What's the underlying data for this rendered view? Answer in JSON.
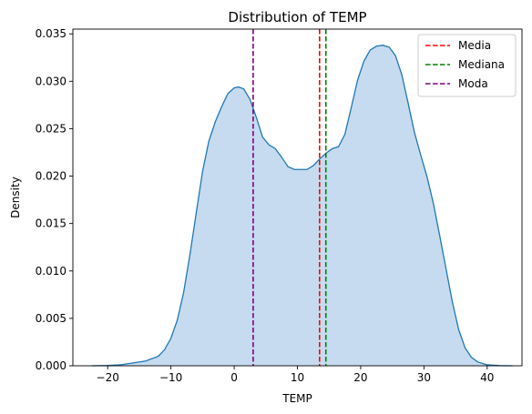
{
  "chart_data": {
    "type": "area",
    "title": "Distribution of TEMP",
    "xlabel": "TEMP",
    "ylabel": "Density",
    "xlim": [
      -25.5,
      45.5
    ],
    "ylim": [
      0,
      0.0355
    ],
    "xticks": [
      -20,
      -10,
      0,
      10,
      20,
      30,
      40
    ],
    "yticks": [
      0.0,
      0.005,
      0.01,
      0.015,
      0.02,
      0.025,
      0.03
    ],
    "ytick_labels": [
      "0.000",
      "0.005",
      "0.010",
      "0.015",
      "0.020",
      "0.025",
      "0.030",
      "0.035"
    ],
    "ytick_values": [
      0.0,
      0.005,
      0.01,
      0.015,
      0.02,
      0.025,
      0.03,
      0.035
    ],
    "grid": false,
    "legend_position": "top-right",
    "series": [
      {
        "kind": "kde",
        "color": "#1f77b4",
        "fill": "#c6dbef",
        "x": [
          -22.5,
          -20,
          -18,
          -16,
          -14,
          -12,
          -11,
          -10,
          -9,
          -8,
          -7,
          -6,
          -5,
          -4,
          -3,
          -2,
          -1,
          0,
          0.7,
          1.5,
          2.5,
          3.5,
          4.5,
          5.5,
          6.5,
          7.5,
          8.5,
          9.5,
          10.5,
          11.5,
          12.5,
          13.5,
          14.5,
          15.5,
          16.5,
          17.5,
          18.5,
          19.5,
          20.5,
          21.5,
          22.5,
          23.5,
          24.5,
          25.5,
          26.5,
          27.5,
          28.5,
          29.5,
          30.5,
          31.5,
          32.5,
          33.5,
          34.5,
          35.5,
          36.5,
          37.5,
          38.5,
          40,
          42,
          44
        ],
        "y": [
          0.0,
          3e-05,
          0.0001,
          0.0003,
          0.0005,
          0.001,
          0.0017,
          0.0029,
          0.0048,
          0.0077,
          0.0117,
          0.0161,
          0.0205,
          0.0237,
          0.0257,
          0.0273,
          0.0287,
          0.0293,
          0.0294,
          0.0292,
          0.0281,
          0.0262,
          0.0241,
          0.0233,
          0.0229,
          0.022,
          0.021,
          0.0207,
          0.0207,
          0.0207,
          0.0211,
          0.0218,
          0.0224,
          0.0229,
          0.0231,
          0.0244,
          0.0272,
          0.0301,
          0.0321,
          0.0333,
          0.0337,
          0.0338,
          0.0336,
          0.0327,
          0.0307,
          0.0277,
          0.0246,
          0.0222,
          0.0199,
          0.0171,
          0.0137,
          0.0102,
          0.0067,
          0.0038,
          0.0019,
          0.0009,
          0.0004,
          0.0001,
          2e-05,
          0.0
        ]
      }
    ],
    "vlines": [
      {
        "name": "Media",
        "x": 13.5,
        "color": "#ff0000"
      },
      {
        "name": "Mediana",
        "x": 14.5,
        "color": "#008000"
      },
      {
        "name": "Moda",
        "x": 3.0,
        "color": "#800080"
      }
    ]
  }
}
